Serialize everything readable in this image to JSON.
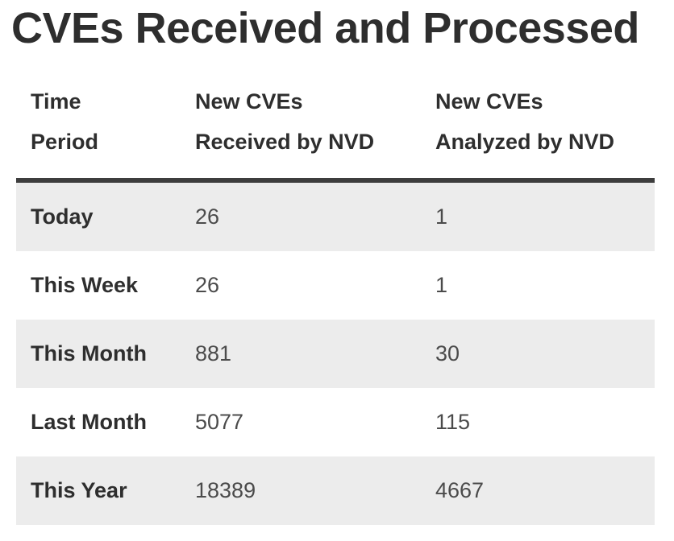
{
  "page": {
    "title": "CVEs Received and Processed"
  },
  "table": {
    "columns": [
      {
        "id": "period",
        "line1": "Time",
        "line2": "Period"
      },
      {
        "id": "received",
        "line1": "New CVEs",
        "line2": "Received by NVD"
      },
      {
        "id": "analyzed",
        "line1": "New CVEs",
        "line2": "Analyzed by NVD"
      }
    ],
    "rows": [
      {
        "period": "Today",
        "received": "26",
        "analyzed": "1"
      },
      {
        "period": "This Week",
        "received": "26",
        "analyzed": "1"
      },
      {
        "period": "This Month",
        "received": "881",
        "analyzed": "30"
      },
      {
        "period": "Last Month",
        "received": "5077",
        "analyzed": "115"
      },
      {
        "period": "This Year",
        "received": "18389",
        "analyzed": "4667"
      }
    ]
  },
  "colors": {
    "background": "#ffffff",
    "text_dark": "#2e2e2e",
    "text_body": "#4b4b4b",
    "row_stripe": "#ececec",
    "header_border": "#3d3d3d"
  }
}
